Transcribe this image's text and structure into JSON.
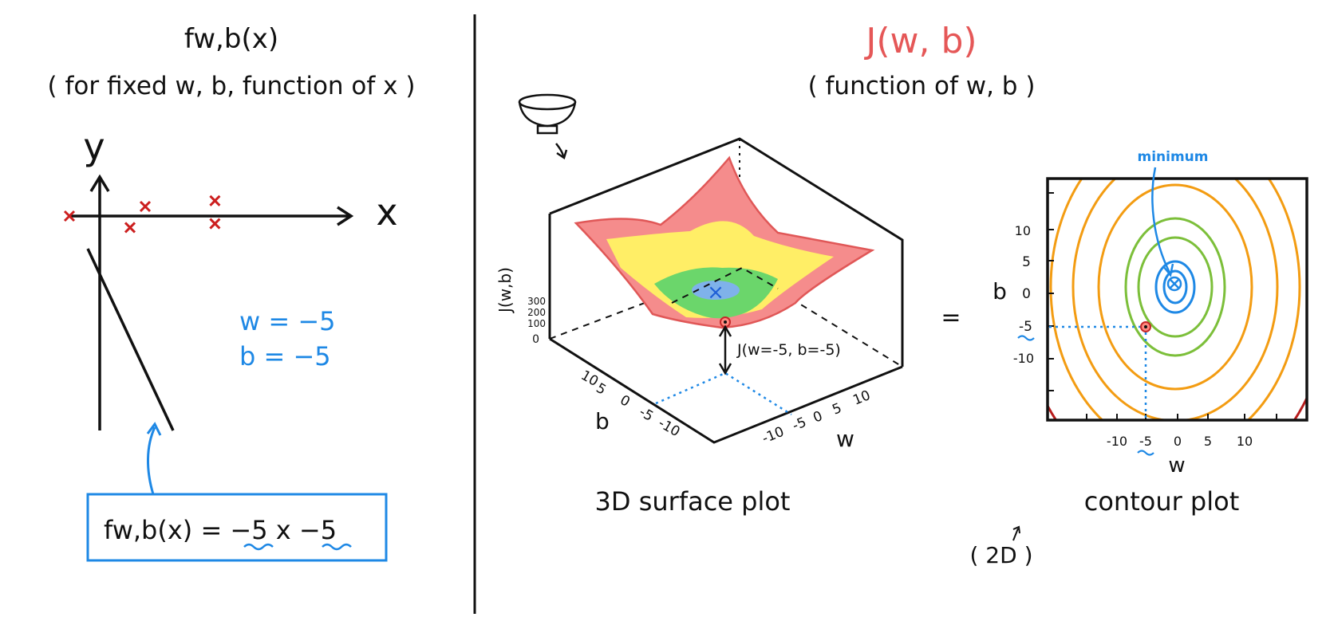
{
  "left_panel": {
    "title": "fw,b(x)",
    "subtitle": "( for fixed w, b,  function of x )",
    "y_axis_label": "y",
    "x_axis_label": "x",
    "w_value": "w = −5",
    "b_value": "b = −5",
    "equation": "fw,b(x)  =  −5 x  −5",
    "points": [
      {
        "x": -1.0,
        "y": 0.0
      },
      {
        "x": 1.0,
        "y": -0.6
      },
      {
        "x": 1.5,
        "y": 0.5
      },
      {
        "x": 3.8,
        "y": 0.8
      },
      {
        "x": 3.8,
        "y": -0.4
      }
    ],
    "colors": {
      "points": "#cc1f1f",
      "accent": "#1e88e5",
      "ink": "#111111"
    }
  },
  "right_panel": {
    "title": "J(w, b)",
    "subtitle": "( function of  w, b )",
    "equals": "=",
    "surface": {
      "caption": "3D surface plot",
      "z_label": "J(w,b)",
      "z_ticks": [
        "300",
        "200",
        "100",
        "0"
      ],
      "b_ticks": [
        "10",
        "5",
        "0",
        "-5",
        "-10"
      ],
      "w_ticks": [
        "-10",
        "-5",
        "0",
        "5",
        "10"
      ],
      "b_label": "b",
      "w_label": "w",
      "point_label": "J(w=-5, b=-5)",
      "bowl_icon": "bowl-icon"
    },
    "contour": {
      "caption": "contour plot",
      "note": "( 2D )",
      "minimum_label": "minimum",
      "b_ticks": [
        "10",
        "5",
        "0",
        "-5",
        "-10"
      ],
      "w_ticks": [
        "-10",
        "-5",
        "0",
        "5",
        "10"
      ],
      "b_label": "b",
      "w_label": "w",
      "ring_colors": [
        "#1e88e5",
        "#1e88e5",
        "#7cbf3a",
        "#7cbf3a",
        "#f39c12",
        "#f39c12",
        "#f39c12",
        "#b71c1c"
      ]
    }
  }
}
